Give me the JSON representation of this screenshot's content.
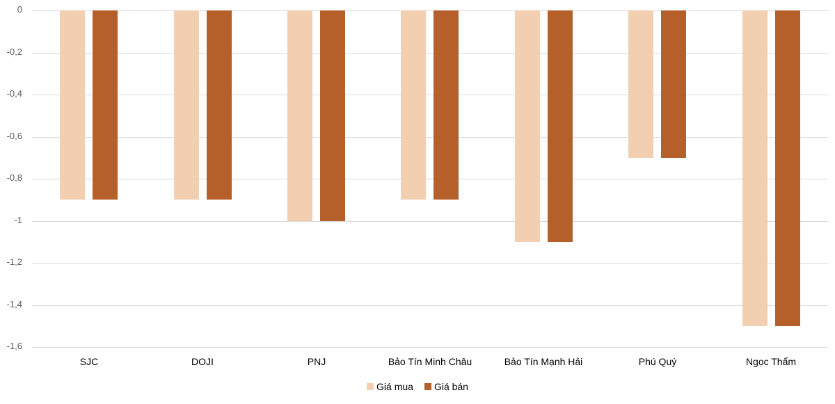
{
  "chart_data": {
    "type": "bar",
    "title": "",
    "xlabel": "",
    "ylabel": "",
    "ylim": [
      -1.6,
      0
    ],
    "y_ticks": [
      "0",
      "-0,2",
      "-0,4",
      "-0,6",
      "-0,8",
      "-1",
      "-1,2",
      "-1,4",
      "-1,6"
    ],
    "y_tick_values": [
      0,
      -0.2,
      -0.4,
      -0.6,
      -0.8,
      -1.0,
      -1.2,
      -1.4,
      -1.6
    ],
    "grid": true,
    "legend_position": "bottom",
    "categories": [
      "SJC",
      "DOJI",
      "PNJ",
      "Bảo Tín Minh Châu",
      "Bảo Tín Mạnh Hải",
      "Phú Quý",
      "Ngọc Thẩm"
    ],
    "series": [
      {
        "name": "Giá mua",
        "color": "#f2cfb1",
        "values": [
          -0.9,
          -0.9,
          -1.0,
          -0.9,
          -1.1,
          -0.7,
          -1.5
        ]
      },
      {
        "name": "Giá bán",
        "color": "#b5602a",
        "values": [
          -0.9,
          -0.9,
          -1.0,
          -0.9,
          -1.1,
          -0.7,
          -1.5
        ]
      }
    ]
  },
  "legend": {
    "items": [
      {
        "label": "Giá mua",
        "color": "#f2cfb1"
      },
      {
        "label": "Giá bán",
        "color": "#b5602a"
      }
    ]
  }
}
